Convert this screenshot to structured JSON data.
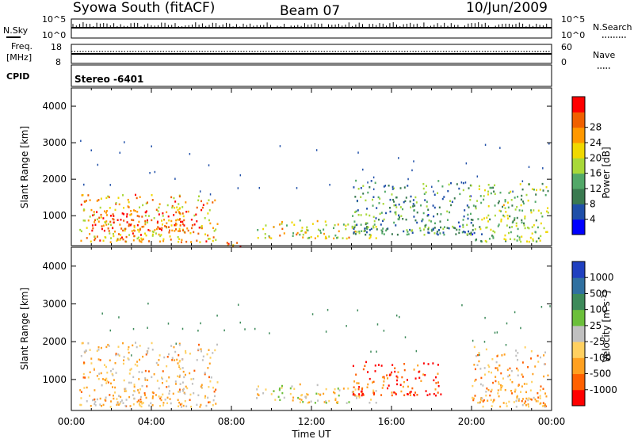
{
  "header": {
    "station": "Syowa South (fitACF)",
    "beam": "Beam 07",
    "date": "10/Jun/2009"
  },
  "strips": {
    "nsky_label": "N.Sky",
    "nsearch_label": "N.Search",
    "freq_label_line1": "Freq.",
    "freq_label_line2": "[MHz]",
    "nave_label": "Nave",
    "cpid_label": "CPID",
    "nsky_ticks": [
      "10^5",
      "10^0"
    ],
    "nsearch_ticks": [
      "10^5",
      "10^0"
    ],
    "freq_ticks": [
      "18",
      "8"
    ],
    "nave_ticks": [
      "60",
      "0"
    ],
    "cpid_value": "Stereo -6401"
  },
  "chart_data": [
    {
      "type": "heatmap",
      "name": "power",
      "xlabel": "",
      "ylabel": "Slant Range [km]",
      "xlim": [
        0,
        24
      ],
      "ylim": [
        180,
        4500
      ],
      "x_tick_labels": [
        "00:00",
        "04:00",
        "08:00",
        "12:00",
        "16:00",
        "20:00",
        "00:00"
      ],
      "y_ticks": [
        1000,
        2000,
        3000,
        4000
      ],
      "colorbar": {
        "label": "Power [dB]",
        "ticks": [
          4,
          8,
          12,
          16,
          20,
          24,
          28
        ],
        "range": [
          0,
          30
        ],
        "colors": [
          "#0000ff",
          "#1f4fa8",
          "#3a7a50",
          "#52a868",
          "#a8d838",
          "#f0d800",
          "#ff9800",
          "#f06000",
          "#ff0000"
        ]
      },
      "regions": [
        {
          "t": [
            0.4,
            7.3
          ],
          "r": [
            300,
            1600
          ],
          "intensity": 0.7
        },
        {
          "t": [
            1.0,
            6.5
          ],
          "r": [
            600,
            1200
          ],
          "intensity": 0.95
        },
        {
          "t": [
            7.6,
            8.8
          ],
          "r": [
            180,
            400
          ],
          "intensity": 0.85
        },
        {
          "t": [
            9.2,
            15.2
          ],
          "r": [
            400,
            900
          ],
          "intensity": 0.55
        },
        {
          "t": [
            14.0,
            20.2
          ],
          "r": [
            500,
            2000
          ],
          "intensity": 0.25
        },
        {
          "t": [
            20.0,
            23.8
          ],
          "r": [
            300,
            1900
          ],
          "intensity": 0.4
        }
      ]
    },
    {
      "type": "heatmap",
      "name": "velocity",
      "xlabel": "Time UT",
      "ylabel": "Slant Range [km]",
      "xlim": [
        0,
        24
      ],
      "ylim": [
        180,
        4500
      ],
      "x_tick_labels": [
        "00:00",
        "04:00",
        "08:00",
        "12:00",
        "16:00",
        "20:00",
        "00:00"
      ],
      "y_ticks": [
        1000,
        2000,
        3000,
        4000
      ],
      "colorbar": {
        "label": "Velocity [m s^-1]",
        "ticks": [
          "1000",
          "500",
          "100",
          "25",
          "-25",
          "-100",
          "-500",
          "-1000"
        ],
        "colors": [
          "#2040c0",
          "#3070a0",
          "#3d8a5a",
          "#6bbf3a",
          "#c0c0c0",
          "#ffd060",
          "#ffa020",
          "#ff6000",
          "#ff0000"
        ]
      },
      "regions": [
        {
          "t": [
            0.4,
            7.3
          ],
          "r": [
            300,
            2000
          ],
          "v": -0.3
        },
        {
          "t": [
            9.2,
            15.2
          ],
          "r": [
            400,
            900
          ],
          "v": -0.15
        },
        {
          "t": [
            14.0,
            18.5
          ],
          "r": [
            600,
            1500
          ],
          "v": -0.8
        },
        {
          "t": [
            20.0,
            23.8
          ],
          "r": [
            300,
            1900
          ],
          "v": -0.4
        }
      ]
    }
  ]
}
